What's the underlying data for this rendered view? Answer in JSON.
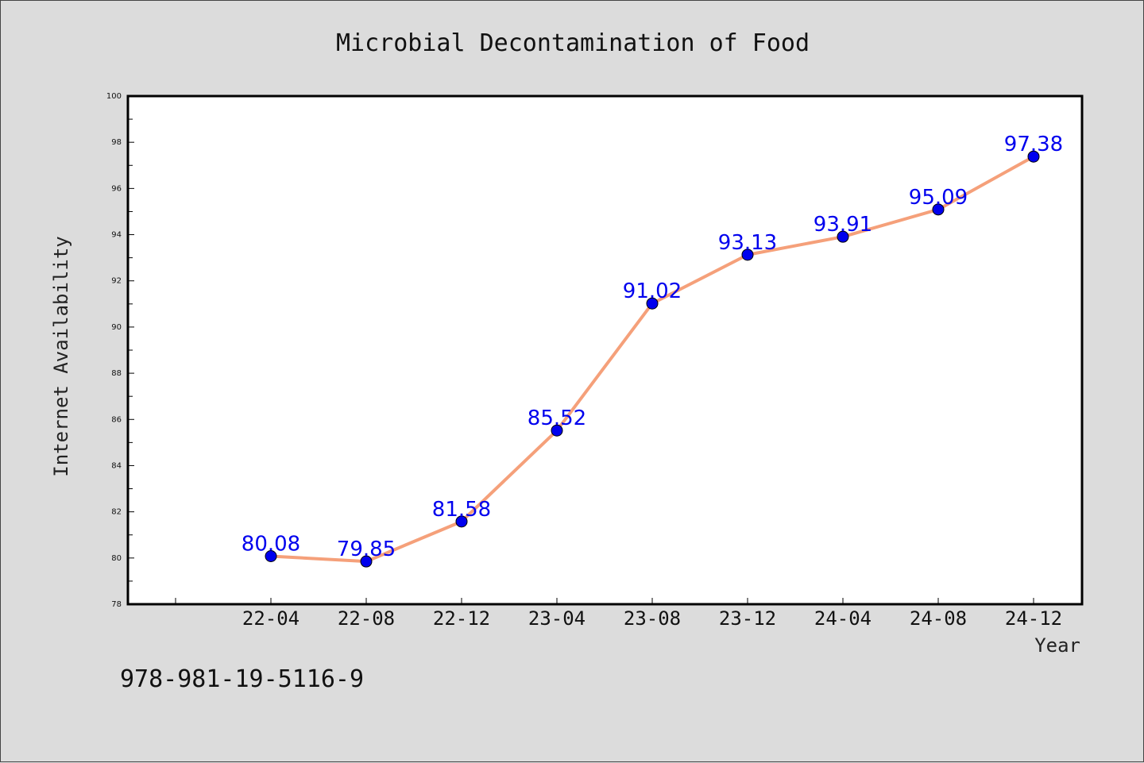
{
  "chart_data": {
    "type": "line",
    "title": "Microbial Decontamination of Food",
    "xlabel": "Year",
    "ylabel": "Internet Availability",
    "categories": [
      "22-04",
      "22-08",
      "22-12",
      "23-04",
      "23-08",
      "23-12",
      "24-04",
      "24-08",
      "24-12"
    ],
    "values": [
      80.08,
      79.85,
      81.58,
      85.52,
      91.02,
      93.13,
      93.91,
      95.09,
      97.38
    ],
    "data_labels": [
      "80.08",
      "79.85",
      "81.58",
      "85.52",
      "91.02",
      "93.13",
      "93.91",
      "95.09",
      "97.38"
    ],
    "ylim": [
      78,
      100
    ],
    "yticks": [
      78,
      80,
      82,
      84,
      86,
      88,
      90,
      92,
      94,
      96,
      98,
      100
    ],
    "grid": false,
    "line_color": "#f5a07a",
    "marker_color": "#0000ee",
    "label_color": "#0000ee"
  },
  "footer": {
    "isbn": "978-981-19-5116-9"
  }
}
